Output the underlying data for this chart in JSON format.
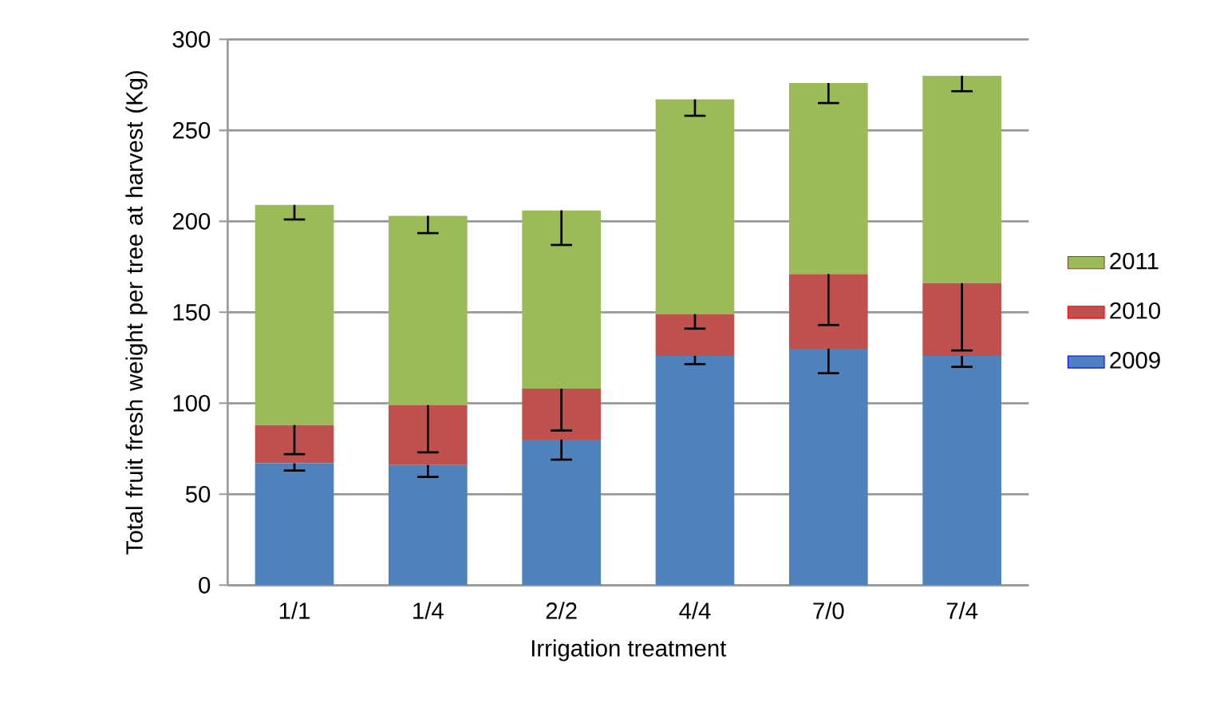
{
  "chart_data": {
    "type": "bar",
    "stacked": true,
    "xlabel": "Irrigation treatment",
    "ylabel": "Total fruit fresh weight per tree at harvest (Kg)",
    "categories": [
      "1/1",
      "1/4",
      "2/2",
      "4/4",
      "7/0",
      "7/4"
    ],
    "series": [
      {
        "name": "2009",
        "color": "#4f81bd",
        "values": [
          67,
          66,
          80,
          126,
          130,
          126
        ],
        "errors": [
          [
            63,
            67
          ],
          [
            59.5,
            66
          ],
          [
            69,
            80
          ],
          [
            121.5,
            126
          ],
          [
            116.5,
            130
          ],
          [
            120,
            126
          ]
        ]
      },
      {
        "name": "2010",
        "color": "#c0504d",
        "values": [
          21,
          33,
          28,
          23,
          41,
          40
        ],
        "errors": [
          [
            72,
            88
          ],
          [
            73,
            99
          ],
          [
            85,
            108
          ],
          [
            141,
            149
          ],
          [
            143,
            171
          ],
          [
            129,
            166
          ]
        ]
      },
      {
        "name": "2011",
        "color": "#9bbb59",
        "values": [
          121,
          104,
          98,
          118,
          105,
          114
        ],
        "errors": [
          [
            201,
            209
          ],
          [
            193.5,
            203
          ],
          [
            187,
            206
          ],
          [
            258,
            267
          ],
          [
            265,
            276
          ],
          [
            271.5,
            280
          ]
        ]
      }
    ],
    "ylim": [
      0,
      300
    ],
    "yticks": [
      0,
      50,
      100,
      150,
      200,
      250,
      300
    ],
    "grid": "y",
    "legend": "right"
  }
}
